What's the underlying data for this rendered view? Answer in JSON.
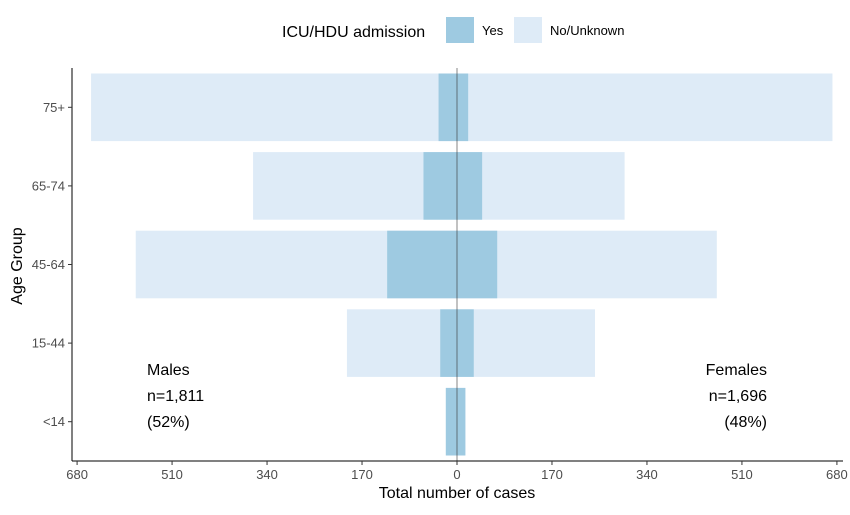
{
  "chart_data": {
    "type": "bar",
    "orientation": "horizontal",
    "layout": "population-pyramid",
    "categories": [
      "<14",
      "15-44",
      "45-64",
      "65-74",
      "75+"
    ],
    "series": [
      {
        "name": "Yes",
        "color": "#9ecae1",
        "males": [
          20,
          30,
          125,
          60,
          33
        ],
        "females": [
          15,
          30,
          72,
          45,
          20
        ]
      },
      {
        "name": "No/Unknown",
        "color": "#deebf7",
        "males": [
          20,
          197,
          575,
          365,
          655
        ],
        "females": [
          15,
          247,
          465,
          300,
          672
        ]
      }
    ],
    "xlabel": "Total number of cases",
    "ylabel": "Age Group",
    "xlim": [
      -690,
      690
    ],
    "xticks": [
      -680,
      -510,
      -340,
      -170,
      0,
      170,
      340,
      510,
      680
    ],
    "xtick_labels": [
      "680",
      "510",
      "340",
      "170",
      "0",
      "170",
      "340",
      "510",
      "680"
    ],
    "legend": {
      "title": "ICU/HDU admission",
      "position": "top",
      "items": [
        {
          "label": "Yes",
          "color": "#9ecae1"
        },
        {
          "label": "No/Unknown",
          "color": "#deebf7"
        }
      ]
    },
    "annotations": {
      "males": [
        "Males",
        "n=1,811",
        "(52%)"
      ],
      "females": [
        "Females",
        "n=1,696",
        "(48%)"
      ]
    }
  }
}
